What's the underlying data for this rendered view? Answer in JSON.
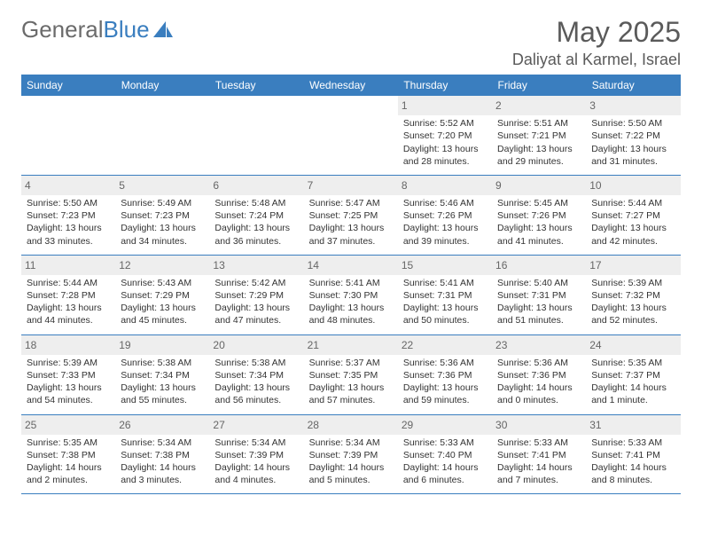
{
  "brand": {
    "part1": "General",
    "part2": "Blue"
  },
  "title": "May 2025",
  "location": "Daliyat al Karmel, Israel",
  "colors": {
    "header_bg": "#3a7ebf",
    "header_text": "#ffffff",
    "daynum_bg": "#eeeeee",
    "daynum_text": "#666666",
    "body_text": "#333333",
    "title_text": "#5a5a5a",
    "rule": "#3a7ebf",
    "page_bg": "#ffffff"
  },
  "dayHeaders": [
    "Sunday",
    "Monday",
    "Tuesday",
    "Wednesday",
    "Thursday",
    "Friday",
    "Saturday"
  ],
  "weeks": [
    [
      {
        "day": "",
        "sunrise": "",
        "sunset": "",
        "daylight": ""
      },
      {
        "day": "",
        "sunrise": "",
        "sunset": "",
        "daylight": ""
      },
      {
        "day": "",
        "sunrise": "",
        "sunset": "",
        "daylight": ""
      },
      {
        "day": "",
        "sunrise": "",
        "sunset": "",
        "daylight": ""
      },
      {
        "day": "1",
        "sunrise": "Sunrise: 5:52 AM",
        "sunset": "Sunset: 7:20 PM",
        "daylight": "Daylight: 13 hours and 28 minutes."
      },
      {
        "day": "2",
        "sunrise": "Sunrise: 5:51 AM",
        "sunset": "Sunset: 7:21 PM",
        "daylight": "Daylight: 13 hours and 29 minutes."
      },
      {
        "day": "3",
        "sunrise": "Sunrise: 5:50 AM",
        "sunset": "Sunset: 7:22 PM",
        "daylight": "Daylight: 13 hours and 31 minutes."
      }
    ],
    [
      {
        "day": "4",
        "sunrise": "Sunrise: 5:50 AM",
        "sunset": "Sunset: 7:23 PM",
        "daylight": "Daylight: 13 hours and 33 minutes."
      },
      {
        "day": "5",
        "sunrise": "Sunrise: 5:49 AM",
        "sunset": "Sunset: 7:23 PM",
        "daylight": "Daylight: 13 hours and 34 minutes."
      },
      {
        "day": "6",
        "sunrise": "Sunrise: 5:48 AM",
        "sunset": "Sunset: 7:24 PM",
        "daylight": "Daylight: 13 hours and 36 minutes."
      },
      {
        "day": "7",
        "sunrise": "Sunrise: 5:47 AM",
        "sunset": "Sunset: 7:25 PM",
        "daylight": "Daylight: 13 hours and 37 minutes."
      },
      {
        "day": "8",
        "sunrise": "Sunrise: 5:46 AM",
        "sunset": "Sunset: 7:26 PM",
        "daylight": "Daylight: 13 hours and 39 minutes."
      },
      {
        "day": "9",
        "sunrise": "Sunrise: 5:45 AM",
        "sunset": "Sunset: 7:26 PM",
        "daylight": "Daylight: 13 hours and 41 minutes."
      },
      {
        "day": "10",
        "sunrise": "Sunrise: 5:44 AM",
        "sunset": "Sunset: 7:27 PM",
        "daylight": "Daylight: 13 hours and 42 minutes."
      }
    ],
    [
      {
        "day": "11",
        "sunrise": "Sunrise: 5:44 AM",
        "sunset": "Sunset: 7:28 PM",
        "daylight": "Daylight: 13 hours and 44 minutes."
      },
      {
        "day": "12",
        "sunrise": "Sunrise: 5:43 AM",
        "sunset": "Sunset: 7:29 PM",
        "daylight": "Daylight: 13 hours and 45 minutes."
      },
      {
        "day": "13",
        "sunrise": "Sunrise: 5:42 AM",
        "sunset": "Sunset: 7:29 PM",
        "daylight": "Daylight: 13 hours and 47 minutes."
      },
      {
        "day": "14",
        "sunrise": "Sunrise: 5:41 AM",
        "sunset": "Sunset: 7:30 PM",
        "daylight": "Daylight: 13 hours and 48 minutes."
      },
      {
        "day": "15",
        "sunrise": "Sunrise: 5:41 AM",
        "sunset": "Sunset: 7:31 PM",
        "daylight": "Daylight: 13 hours and 50 minutes."
      },
      {
        "day": "16",
        "sunrise": "Sunrise: 5:40 AM",
        "sunset": "Sunset: 7:31 PM",
        "daylight": "Daylight: 13 hours and 51 minutes."
      },
      {
        "day": "17",
        "sunrise": "Sunrise: 5:39 AM",
        "sunset": "Sunset: 7:32 PM",
        "daylight": "Daylight: 13 hours and 52 minutes."
      }
    ],
    [
      {
        "day": "18",
        "sunrise": "Sunrise: 5:39 AM",
        "sunset": "Sunset: 7:33 PM",
        "daylight": "Daylight: 13 hours and 54 minutes."
      },
      {
        "day": "19",
        "sunrise": "Sunrise: 5:38 AM",
        "sunset": "Sunset: 7:34 PM",
        "daylight": "Daylight: 13 hours and 55 minutes."
      },
      {
        "day": "20",
        "sunrise": "Sunrise: 5:38 AM",
        "sunset": "Sunset: 7:34 PM",
        "daylight": "Daylight: 13 hours and 56 minutes."
      },
      {
        "day": "21",
        "sunrise": "Sunrise: 5:37 AM",
        "sunset": "Sunset: 7:35 PM",
        "daylight": "Daylight: 13 hours and 57 minutes."
      },
      {
        "day": "22",
        "sunrise": "Sunrise: 5:36 AM",
        "sunset": "Sunset: 7:36 PM",
        "daylight": "Daylight: 13 hours and 59 minutes."
      },
      {
        "day": "23",
        "sunrise": "Sunrise: 5:36 AM",
        "sunset": "Sunset: 7:36 PM",
        "daylight": "Daylight: 14 hours and 0 minutes."
      },
      {
        "day": "24",
        "sunrise": "Sunrise: 5:35 AM",
        "sunset": "Sunset: 7:37 PM",
        "daylight": "Daylight: 14 hours and 1 minute."
      }
    ],
    [
      {
        "day": "25",
        "sunrise": "Sunrise: 5:35 AM",
        "sunset": "Sunset: 7:38 PM",
        "daylight": "Daylight: 14 hours and 2 minutes."
      },
      {
        "day": "26",
        "sunrise": "Sunrise: 5:34 AM",
        "sunset": "Sunset: 7:38 PM",
        "daylight": "Daylight: 14 hours and 3 minutes."
      },
      {
        "day": "27",
        "sunrise": "Sunrise: 5:34 AM",
        "sunset": "Sunset: 7:39 PM",
        "daylight": "Daylight: 14 hours and 4 minutes."
      },
      {
        "day": "28",
        "sunrise": "Sunrise: 5:34 AM",
        "sunset": "Sunset: 7:39 PM",
        "daylight": "Daylight: 14 hours and 5 minutes."
      },
      {
        "day": "29",
        "sunrise": "Sunrise: 5:33 AM",
        "sunset": "Sunset: 7:40 PM",
        "daylight": "Daylight: 14 hours and 6 minutes."
      },
      {
        "day": "30",
        "sunrise": "Sunrise: 5:33 AM",
        "sunset": "Sunset: 7:41 PM",
        "daylight": "Daylight: 14 hours and 7 minutes."
      },
      {
        "day": "31",
        "sunrise": "Sunrise: 5:33 AM",
        "sunset": "Sunset: 7:41 PM",
        "daylight": "Daylight: 14 hours and 8 minutes."
      }
    ]
  ]
}
